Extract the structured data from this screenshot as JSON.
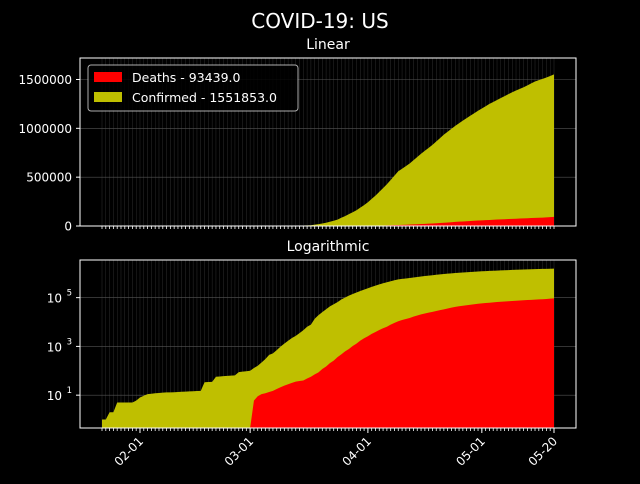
{
  "chart_data": {
    "title": "COVID-19: US",
    "type": "area",
    "colors": {
      "deaths": "#ff0000",
      "confirmed": "#bfbf00",
      "background": "#000000",
      "foreground": "#ffffff",
      "grid": "#555555"
    },
    "x_tick_labels": [
      "02-01",
      "03-01",
      "04-01",
      "05-01",
      "05-20"
    ],
    "x_tick_days": [
      10,
      39,
      70,
      100,
      119
    ],
    "date_range": [
      "01-22",
      "05-20"
    ],
    "legend": {
      "placement": "top-left",
      "entries": [
        {
          "name": "Deaths - 93439.0",
          "series": "deaths"
        },
        {
          "name": "Confirmed - 1551853.0",
          "series": "confirmed"
        }
      ]
    },
    "series": [
      {
        "name": "Deaths",
        "points": [
          [
            39,
            0
          ],
          [
            40,
            6
          ],
          [
            41,
            9
          ],
          [
            42,
            11
          ],
          [
            43,
            12
          ],
          [
            45,
            15
          ],
          [
            47,
            21
          ],
          [
            49,
            28
          ],
          [
            51,
            36
          ],
          [
            53,
            40
          ],
          [
            55,
            57
          ],
          [
            57,
            86
          ],
          [
            59,
            150
          ],
          [
            61,
            260
          ],
          [
            63,
            470
          ],
          [
            65,
            780
          ],
          [
            67,
            1300
          ],
          [
            70,
            2600
          ],
          [
            72,
            3900
          ],
          [
            75,
            6400
          ],
          [
            78,
            10700
          ],
          [
            81,
            14700
          ],
          [
            84,
            20500
          ],
          [
            87,
            26000
          ],
          [
            90,
            33000
          ],
          [
            93,
            42000
          ],
          [
            96,
            49000
          ],
          [
            99,
            56000
          ],
          [
            102,
            62000
          ],
          [
            105,
            68000
          ],
          [
            108,
            73000
          ],
          [
            111,
            78000
          ],
          [
            114,
            83000
          ],
          [
            117,
            88000
          ],
          [
            119,
            93439
          ]
        ]
      },
      {
        "name": "Confirmed",
        "points": [
          [
            0,
            1
          ],
          [
            1,
            1
          ],
          [
            2,
            2
          ],
          [
            3,
            2
          ],
          [
            4,
            5
          ],
          [
            8,
            5
          ],
          [
            9,
            6
          ],
          [
            10,
            8
          ],
          [
            12,
            11
          ],
          [
            14,
            12
          ],
          [
            17,
            13
          ],
          [
            18,
            13
          ],
          [
            26,
            15
          ],
          [
            27,
            34
          ],
          [
            29,
            35
          ],
          [
            30,
            57
          ],
          [
            35,
            65
          ],
          [
            36,
            88
          ],
          [
            39,
            100
          ],
          [
            40,
            130
          ],
          [
            41,
            160
          ],
          [
            42,
            220
          ],
          [
            43,
            300
          ],
          [
            44,
            450
          ],
          [
            45,
            520
          ],
          [
            46,
            700
          ],
          [
            47,
            980
          ],
          [
            48,
            1300
          ],
          [
            49,
            1700
          ],
          [
            50,
            2200
          ],
          [
            51,
            2700
          ],
          [
            52,
            3500
          ],
          [
            53,
            4600
          ],
          [
            54,
            6400
          ],
          [
            55,
            7800
          ],
          [
            56,
            13700
          ],
          [
            57,
            19100
          ],
          [
            58,
            25500
          ],
          [
            59,
            33300
          ],
          [
            60,
            43800
          ],
          [
            61,
            53700
          ],
          [
            62,
            65800
          ],
          [
            63,
            83800
          ],
          [
            64,
            101700
          ],
          [
            65,
            121500
          ],
          [
            66,
            140900
          ],
          [
            67,
            161800
          ],
          [
            68,
            188200
          ],
          [
            69,
            213400
          ],
          [
            70,
            243600
          ],
          [
            72,
            311000
          ],
          [
            75,
            427000
          ],
          [
            78,
            560000
          ],
          [
            81,
            640000
          ],
          [
            84,
            740000
          ],
          [
            87,
            830000
          ],
          [
            90,
            935000
          ],
          [
            93,
            1025000
          ],
          [
            96,
            1105000
          ],
          [
            99,
            1180000
          ],
          [
            102,
            1250000
          ],
          [
            105,
            1310000
          ],
          [
            108,
            1370000
          ],
          [
            111,
            1420000
          ],
          [
            114,
            1480000
          ],
          [
            117,
            1520000
          ],
          [
            119,
            1551853
          ]
        ]
      }
    ],
    "panels": [
      {
        "title": "Linear",
        "scale": "linear",
        "ylim": [
          0,
          1720000
        ],
        "y_ticks": [
          0,
          500000,
          1000000,
          1500000
        ],
        "y_tick_labels": [
          "0",
          "500000",
          "1000000",
          "1500000"
        ],
        "show_x_labels": false,
        "show_legend": true
      },
      {
        "title": "Logarithmic",
        "scale": "log",
        "ylim": [
          0.45,
          3500000
        ],
        "y_ticks": [
          10,
          1000,
          100000
        ],
        "y_tick_labels": [
          "10",
          "3",
          "10",
          "5"
        ],
        "y_tick_base": "10",
        "y_tick_exponents": [
          "1",
          "3",
          "5"
        ],
        "show_x_labels": true,
        "show_legend": false
      }
    ]
  }
}
